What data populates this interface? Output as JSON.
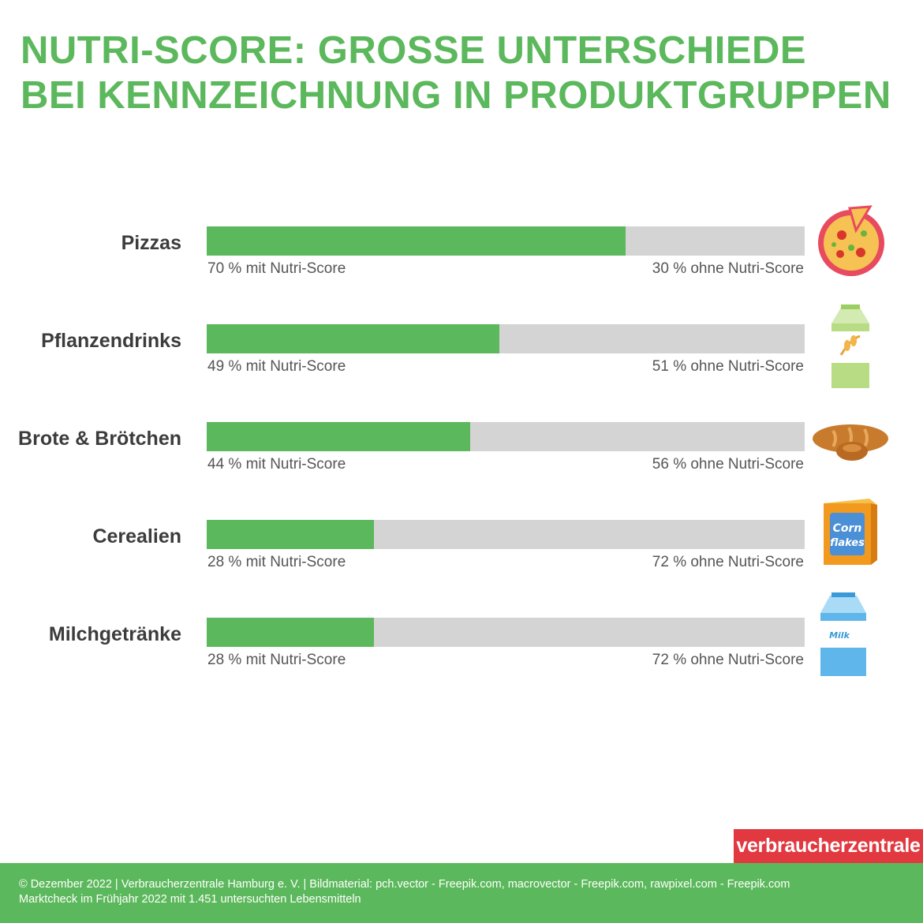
{
  "title": {
    "line1": "NUTRI-SCORE: GROSSE UNTERSCHIEDE",
    "line2": "BEI KENNZEICHNUNG IN PRODUKTGRUPPEN"
  },
  "chart_data": {
    "type": "bar",
    "stacked": true,
    "orientation": "horizontal",
    "categories": [
      "Pizzas",
      "Pflanzendrinks",
      "Brote & Brötchen",
      "Cerealien",
      "Milchgetränke"
    ],
    "series": [
      {
        "name": "mit Nutri-Score",
        "values": [
          70,
          49,
          44,
          28,
          28
        ],
        "color": "#5cb85c"
      },
      {
        "name": "ohne Nutri-Score",
        "values": [
          30,
          51,
          56,
          72,
          72
        ],
        "color": "#d4d4d4"
      }
    ],
    "with_labels": [
      "70 % mit Nutri-Score",
      "49 % mit Nutri-Score",
      "44 % mit Nutri-Score",
      "28 % mit Nutri-Score",
      "28 % mit Nutri-Score"
    ],
    "without_labels": [
      "30 % ohne Nutri-Score",
      "51 % ohne Nutri-Score",
      "56 % ohne Nutri-Score",
      "72 % ohne Nutri-Score",
      "72 % ohne Nutri-Score"
    ],
    "icons": [
      "pizza-icon",
      "plant-drink-carton-icon",
      "bread-icon",
      "cornflakes-box-icon",
      "milk-carton-icon"
    ],
    "xlim": [
      0,
      100
    ],
    "grid": false
  },
  "brand": "verbraucherzentrale",
  "footer": {
    "line1": "© Dezember 2022 | Verbraucherzentrale Hamburg e. V. | Bildmaterial: pch.vector - Freepik.com, macrovector - Freepik.com, rawpixel.com - Freepik.com",
    "line2": "Marktcheck im Frühjahr 2022 mit 1.451 untersuchten Lebensmitteln"
  },
  "colors": {
    "accent_green": "#5cb85c",
    "track_grey": "#d4d4d4",
    "brand_red": "#e2383f"
  }
}
